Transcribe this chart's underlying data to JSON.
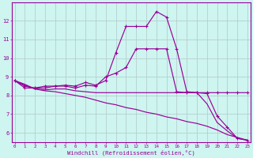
{
  "x": [
    0,
    1,
    2,
    3,
    4,
    5,
    6,
    7,
    8,
    9,
    10,
    11,
    12,
    13,
    14,
    15,
    16,
    17,
    18,
    19,
    20,
    21,
    22,
    23
  ],
  "line1": [
    8.8,
    8.4,
    8.4,
    8.5,
    8.5,
    8.55,
    8.5,
    8.7,
    8.55,
    8.8,
    10.3,
    11.7,
    11.7,
    11.7,
    12.5,
    12.2,
    10.5,
    8.2,
    8.15,
    8.1,
    6.9,
    6.3,
    5.7,
    5.6
  ],
  "line2": [
    8.8,
    8.5,
    8.4,
    8.4,
    8.5,
    8.5,
    8.4,
    8.55,
    8.5,
    9.0,
    9.2,
    9.5,
    10.5,
    10.5,
    10.5,
    10.5,
    8.2,
    8.15,
    8.15,
    8.15,
    8.15,
    8.15,
    8.15,
    8.15
  ],
  "line3": [
    8.8,
    8.6,
    8.35,
    8.3,
    8.35,
    8.35,
    8.25,
    8.2,
    8.15,
    8.15,
    8.15,
    8.15,
    8.15,
    8.15,
    8.15,
    8.15,
    8.15,
    8.15,
    8.15,
    7.55,
    6.55,
    6.1,
    5.7,
    5.6
  ],
  "line4": [
    8.8,
    8.55,
    8.35,
    8.25,
    8.2,
    8.1,
    8.0,
    7.9,
    7.75,
    7.6,
    7.5,
    7.35,
    7.25,
    7.1,
    7.0,
    6.85,
    6.75,
    6.6,
    6.5,
    6.35,
    6.15,
    5.9,
    5.75,
    5.6
  ],
  "line_color": "#990099",
  "bg_color": "#cef5f0",
  "grid_color": "#b0c8c8",
  "xlabel": "Windchill (Refroidissement éolien,°C)",
  "ylabel_ticks": [
    6,
    7,
    8,
    9,
    10,
    11,
    12
  ],
  "xlabel_ticks": [
    0,
    1,
    2,
    3,
    4,
    5,
    6,
    7,
    8,
    9,
    10,
    11,
    12,
    13,
    14,
    15,
    16,
    17,
    18,
    19,
    20,
    21,
    22,
    23
  ],
  "ylim": [
    5.5,
    13.0
  ],
  "xlim": [
    -0.3,
    23.3
  ]
}
